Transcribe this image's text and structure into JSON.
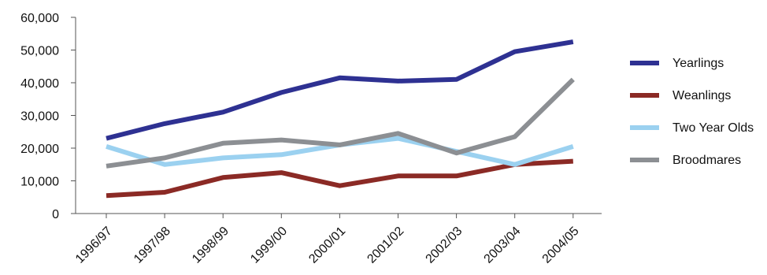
{
  "chart_data": {
    "type": "line",
    "title": "",
    "xlabel": "",
    "ylabel": "",
    "categories": [
      "1996/97",
      "1997/98",
      "1998/99",
      "1999/00",
      "2000/01",
      "2001/02",
      "2002/03",
      "2003/04",
      "2004/05"
    ],
    "y_ticks": [
      "0",
      "10,000",
      "20,000",
      "30,000",
      "40,000",
      "50,000",
      "60,000"
    ],
    "ylim": [
      0,
      60000
    ],
    "grid": false,
    "legend_position": "right",
    "series": [
      {
        "name": "Yearlings",
        "color": "#2e3192",
        "values": [
          23000,
          27500,
          31000,
          37000,
          41500,
          40500,
          41000,
          49500,
          52500
        ]
      },
      {
        "name": "Weanlings",
        "color": "#8b2a25",
        "values": [
          5500,
          6500,
          11000,
          12500,
          8500,
          11500,
          11500,
          15000,
          16000
        ]
      },
      {
        "name": "Two Year Olds",
        "color": "#9bd1f0",
        "values": [
          20500,
          15000,
          17000,
          18000,
          21000,
          23000,
          19000,
          15000,
          20500
        ]
      },
      {
        "name": "Broodmares",
        "color": "#8c8f93",
        "values": [
          14500,
          17000,
          21500,
          22500,
          21000,
          24500,
          18500,
          23500,
          41000
        ]
      }
    ]
  }
}
